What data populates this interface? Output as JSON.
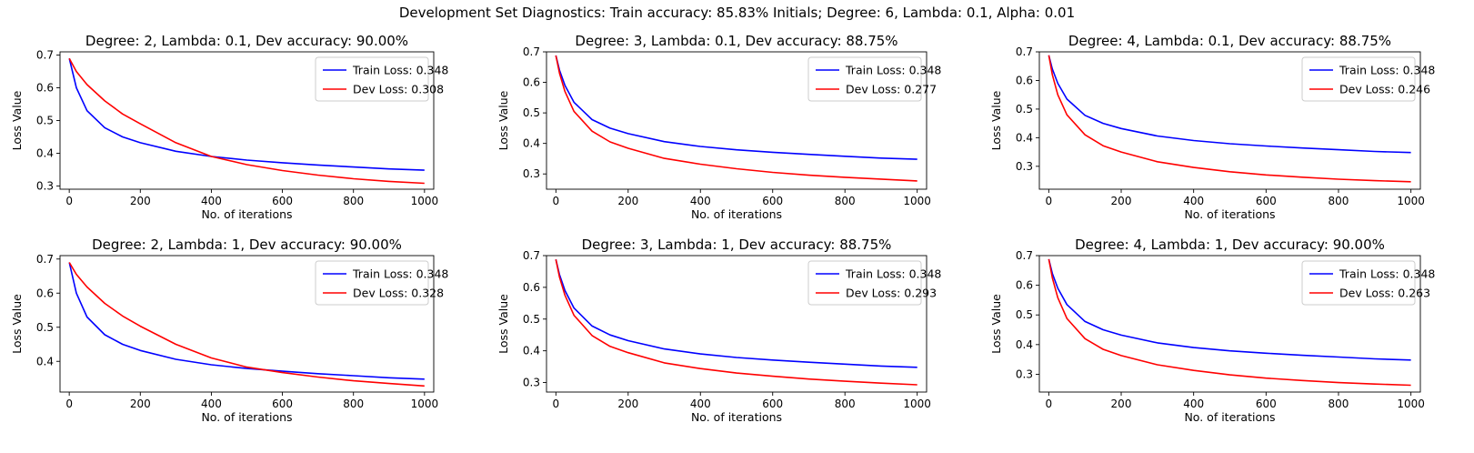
{
  "suptitle": "Development Set Diagnostics: Train accuracy: 85.83% Initials; Degree: 6, Lambda: 0.1, Alpha: 0.01",
  "colors": {
    "train": "#0000ff",
    "dev": "#ff0000",
    "axes": "#000000"
  },
  "chart_data": [
    {
      "type": "line",
      "title": "Degree: 2, Lambda: 0.1, Dev accuracy: 90.00%",
      "xlabel": "No. of iterations",
      "ylabel": "Loss Value",
      "xlim": [
        -26,
        1026
      ],
      "ylim": [
        0.29,
        0.71
      ],
      "xticks": [
        0,
        200,
        400,
        600,
        800,
        1000
      ],
      "yticks": [
        0.3,
        0.4,
        0.5,
        0.6,
        0.7
      ],
      "legend_position": "top-right",
      "grid": false,
      "x": [
        0,
        20,
        50,
        100,
        150,
        200,
        300,
        400,
        500,
        600,
        700,
        800,
        900,
        1000
      ],
      "series": [
        {
          "name": "Train Loss: 0.348",
          "color": "#0000ff",
          "values": [
            0.69,
            0.6,
            0.53,
            0.478,
            0.45,
            0.432,
            0.406,
            0.39,
            0.379,
            0.371,
            0.364,
            0.358,
            0.352,
            0.348
          ]
        },
        {
          "name": "Dev Loss: 0.308",
          "color": "#ff0000",
          "values": [
            0.69,
            0.65,
            0.61,
            0.56,
            0.52,
            0.49,
            0.432,
            0.39,
            0.365,
            0.347,
            0.333,
            0.322,
            0.314,
            0.308
          ]
        }
      ]
    },
    {
      "type": "line",
      "title": "Degree: 3, Lambda: 0.1, Dev accuracy: 88.75%",
      "xlabel": "No. of iterations",
      "ylabel": "Loss Value",
      "xlim": [
        -26,
        1026
      ],
      "ylim": [
        0.25,
        0.7
      ],
      "xticks": [
        0,
        200,
        400,
        600,
        800,
        1000
      ],
      "yticks": [
        0.3,
        0.4,
        0.5,
        0.6,
        0.7
      ],
      "legend_position": "top-right",
      "grid": false,
      "x": [
        0,
        10,
        25,
        50,
        100,
        150,
        200,
        300,
        400,
        500,
        600,
        700,
        800,
        900,
        1000
      ],
      "series": [
        {
          "name": "Train Loss: 0.348",
          "color": "#0000ff",
          "values": [
            0.688,
            0.64,
            0.59,
            0.535,
            0.478,
            0.45,
            0.432,
            0.406,
            0.39,
            0.379,
            0.371,
            0.364,
            0.358,
            0.352,
            0.348
          ]
        },
        {
          "name": "Dev Loss: 0.277",
          "color": "#ff0000",
          "values": [
            0.688,
            0.63,
            0.57,
            0.505,
            0.44,
            0.405,
            0.384,
            0.351,
            0.332,
            0.317,
            0.305,
            0.296,
            0.289,
            0.283,
            0.277
          ]
        }
      ]
    },
    {
      "type": "line",
      "title": "Degree: 4, Lambda: 0.1, Dev accuracy: 88.75%",
      "xlabel": "No. of iterations",
      "ylabel": "Loss Value",
      "xlim": [
        -26,
        1026
      ],
      "ylim": [
        0.22,
        0.7
      ],
      "xticks": [
        0,
        200,
        400,
        600,
        800,
        1000
      ],
      "yticks": [
        0.3,
        0.4,
        0.5,
        0.6,
        0.7
      ],
      "legend_position": "top-right",
      "grid": false,
      "x": [
        0,
        10,
        25,
        50,
        100,
        150,
        200,
        300,
        400,
        500,
        600,
        700,
        800,
        900,
        1000
      ],
      "series": [
        {
          "name": "Train Loss: 0.348",
          "color": "#0000ff",
          "values": [
            0.688,
            0.64,
            0.59,
            0.535,
            0.478,
            0.45,
            0.432,
            0.406,
            0.39,
            0.379,
            0.371,
            0.364,
            0.358,
            0.352,
            0.348
          ]
        },
        {
          "name": "Dev Loss: 0.246",
          "color": "#ff0000",
          "values": [
            0.688,
            0.62,
            0.55,
            0.48,
            0.41,
            0.372,
            0.35,
            0.316,
            0.296,
            0.281,
            0.27,
            0.262,
            0.255,
            0.25,
            0.246
          ]
        }
      ]
    },
    {
      "type": "line",
      "title": "Degree: 2, Lambda: 1, Dev accuracy: 90.00%",
      "xlabel": "No. of iterations",
      "ylabel": "Loss Value",
      "xlim": [
        -26,
        1026
      ],
      "ylim": [
        0.31,
        0.71
      ],
      "xticks": [
        0,
        200,
        400,
        600,
        800,
        1000
      ],
      "yticks": [
        0.4,
        0.5,
        0.6,
        0.7
      ],
      "legend_position": "top-right",
      "grid": false,
      "x": [
        0,
        20,
        50,
        100,
        150,
        200,
        300,
        400,
        500,
        600,
        700,
        800,
        900,
        1000
      ],
      "series": [
        {
          "name": "Train Loss: 0.348",
          "color": "#0000ff",
          "values": [
            0.69,
            0.6,
            0.53,
            0.478,
            0.45,
            0.432,
            0.406,
            0.39,
            0.379,
            0.371,
            0.364,
            0.358,
            0.352,
            0.348
          ]
        },
        {
          "name": "Dev Loss: 0.328",
          "color": "#ff0000",
          "values": [
            0.69,
            0.655,
            0.618,
            0.57,
            0.533,
            0.503,
            0.45,
            0.41,
            0.383,
            0.367,
            0.354,
            0.343,
            0.335,
            0.328
          ]
        }
      ]
    },
    {
      "type": "line",
      "title": "Degree: 3, Lambda: 1, Dev accuracy: 88.75%",
      "xlabel": "No. of iterations",
      "ylabel": "Loss Value",
      "xlim": [
        -26,
        1026
      ],
      "ylim": [
        0.27,
        0.7
      ],
      "xticks": [
        0,
        200,
        400,
        600,
        800,
        1000
      ],
      "yticks": [
        0.3,
        0.4,
        0.5,
        0.6,
        0.7
      ],
      "legend_position": "top-right",
      "grid": false,
      "x": [
        0,
        10,
        25,
        50,
        100,
        150,
        200,
        300,
        400,
        500,
        600,
        700,
        800,
        900,
        1000
      ],
      "series": [
        {
          "name": "Train Loss: 0.348",
          "color": "#0000ff",
          "values": [
            0.688,
            0.64,
            0.59,
            0.535,
            0.478,
            0.45,
            0.432,
            0.406,
            0.39,
            0.379,
            0.371,
            0.364,
            0.358,
            0.352,
            0.348
          ]
        },
        {
          "name": "Dev Loss: 0.293",
          "color": "#ff0000",
          "values": [
            0.688,
            0.632,
            0.575,
            0.512,
            0.448,
            0.414,
            0.394,
            0.362,
            0.344,
            0.33,
            0.32,
            0.311,
            0.304,
            0.298,
            0.293
          ]
        }
      ]
    },
    {
      "type": "line",
      "title": "Degree: 4, Lambda: 1, Dev accuracy: 90.00%",
      "xlabel": "No. of iterations",
      "ylabel": "Loss Value",
      "xlim": [
        -26,
        1026
      ],
      "ylim": [
        0.24,
        0.7
      ],
      "xticks": [
        0,
        200,
        400,
        600,
        800,
        1000
      ],
      "yticks": [
        0.3,
        0.4,
        0.5,
        0.6,
        0.7
      ],
      "legend_position": "top-right",
      "grid": false,
      "x": [
        0,
        10,
        25,
        50,
        100,
        150,
        200,
        300,
        400,
        500,
        600,
        700,
        800,
        900,
        1000
      ],
      "series": [
        {
          "name": "Train Loss: 0.348",
          "color": "#0000ff",
          "values": [
            0.688,
            0.64,
            0.59,
            0.535,
            0.478,
            0.45,
            0.432,
            0.406,
            0.39,
            0.379,
            0.371,
            0.364,
            0.358,
            0.352,
            0.348
          ]
        },
        {
          "name": "Dev Loss: 0.263",
          "color": "#ff0000",
          "values": [
            0.688,
            0.625,
            0.558,
            0.488,
            0.42,
            0.384,
            0.363,
            0.332,
            0.313,
            0.298,
            0.287,
            0.279,
            0.272,
            0.267,
            0.263
          ]
        }
      ]
    }
  ]
}
